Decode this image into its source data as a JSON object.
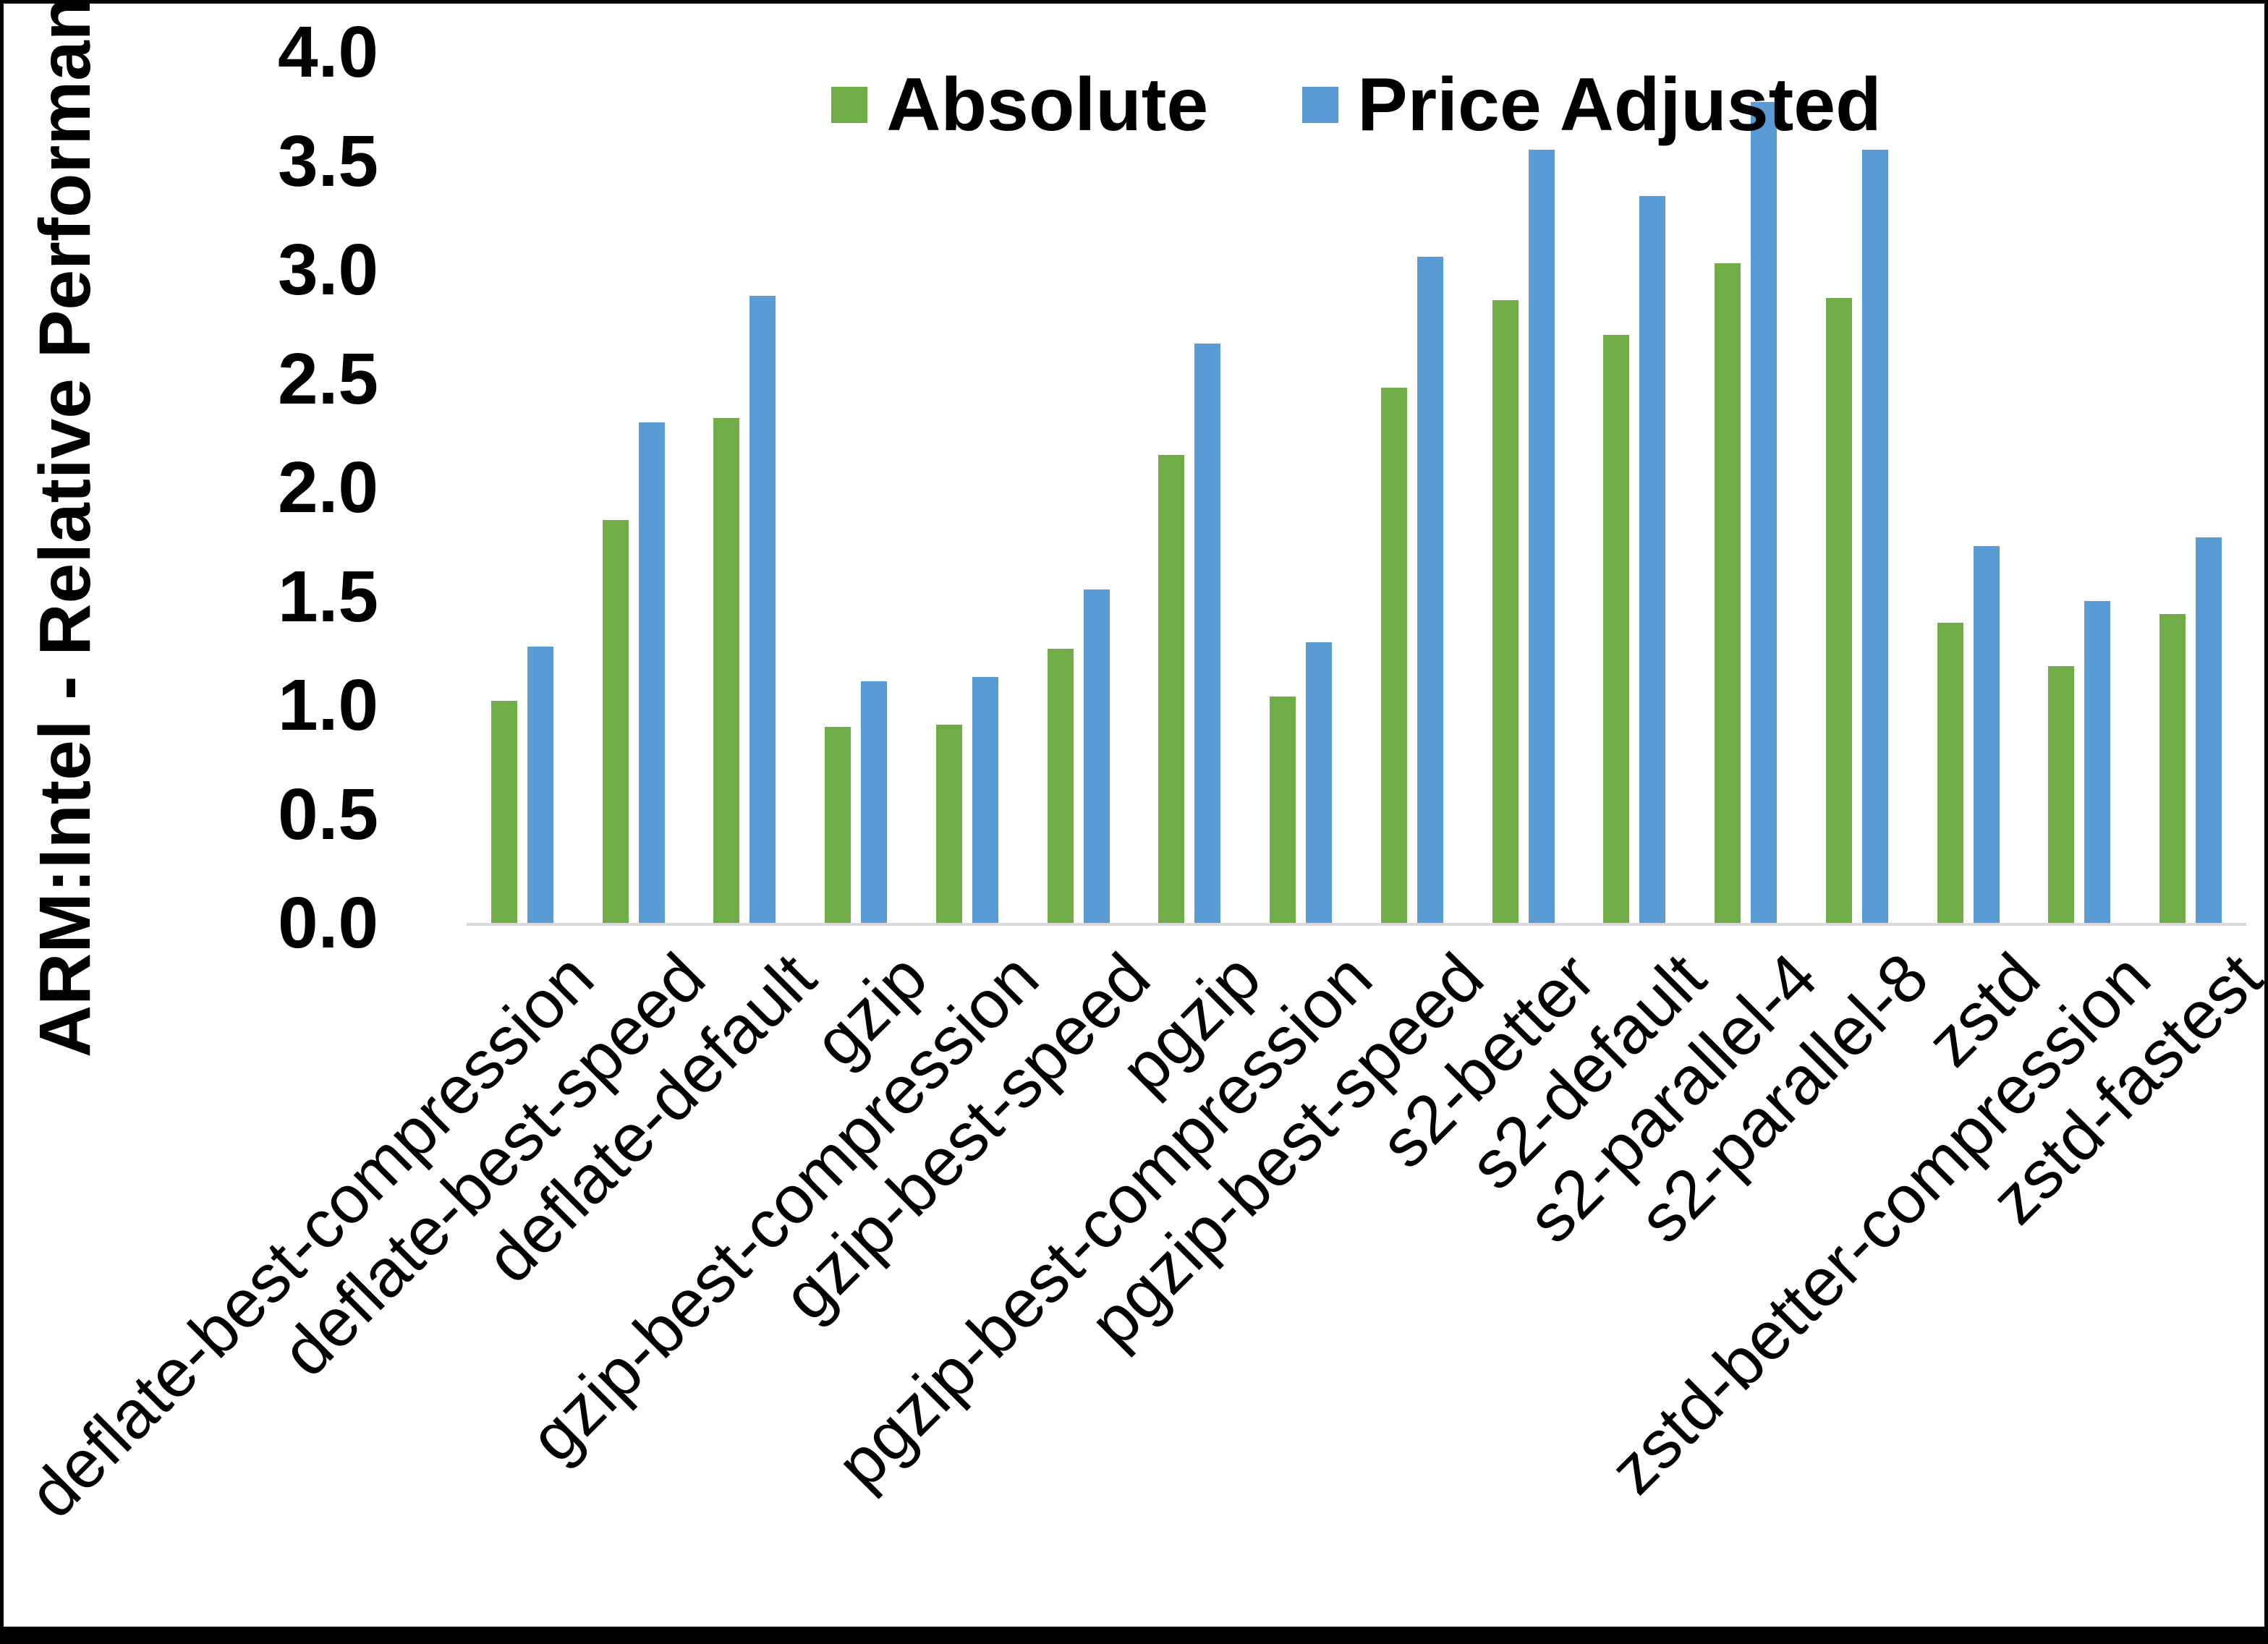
{
  "colors": {
    "absolute": "#70AD47",
    "price_adjusted": "#5B9BD5",
    "axis_line": "#D9D9D9",
    "text": "#000000",
    "background": "#FFFFFF",
    "frame_border": "#000000"
  },
  "chart_data": {
    "type": "bar",
    "title": "",
    "xlabel": "",
    "ylabel": "ARM:Intel - Relative Performance",
    "ylim": [
      0.0,
      4.0
    ],
    "ytick_labels": [
      "4.0",
      "3.5",
      "3.0",
      "2.5",
      "2.0",
      "1.5",
      "1.0",
      "0.5",
      "0.0"
    ],
    "grid": false,
    "legend_position": "top-center",
    "categories": [
      "deflate-best-compression",
      "deflate-best-speed",
      "deflate-default",
      "gzip",
      "gzip-best-compression",
      "gzip-best-speed",
      "pgzip",
      "pgzip-best-compression",
      "pgzip-best-speed",
      "s2-better",
      "s2-default",
      "s2-parallel-4",
      "s2-parallel-8",
      "zstd",
      "zstd-better-compression",
      "zstd-fastest"
    ],
    "series": [
      {
        "name": "Absolute",
        "color": "#70AD47",
        "values": [
          1.02,
          1.85,
          2.32,
          0.9,
          0.91,
          1.26,
          2.15,
          1.04,
          2.46,
          2.86,
          2.7,
          3.03,
          2.87,
          1.38,
          1.18,
          1.42
        ]
      },
      {
        "name": "Price Adjusted",
        "color": "#5B9BD5",
        "values": [
          1.27,
          2.3,
          2.88,
          1.11,
          1.13,
          1.53,
          2.66,
          1.29,
          3.06,
          3.55,
          3.34,
          3.77,
          3.55,
          1.73,
          1.48,
          1.77
        ]
      }
    ]
  }
}
